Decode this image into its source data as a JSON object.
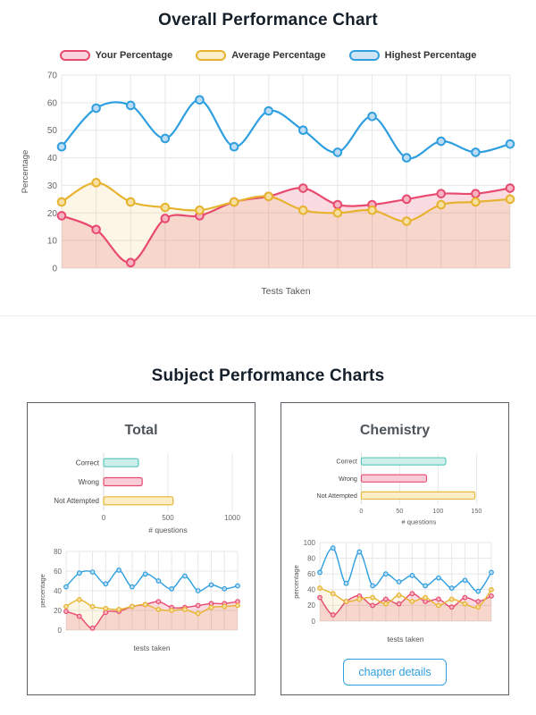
{
  "overall": {
    "title": "Overall Performance Chart",
    "xlabel": "Tests Taken",
    "ylabel": "Percentage"
  },
  "legend": [
    {
      "label": "Your Percentage",
      "stroke": "#e84a6f",
      "fill": "#fbd3dd"
    },
    {
      "label": "Average Percentage",
      "stroke": "#e7b32f",
      "fill": "#faeec9"
    },
    {
      "label": "Highest Percentage",
      "stroke": "#2f9fe0",
      "fill": "#cfe4f5"
    }
  ],
  "subjects": {
    "title": "Subject Performance Charts",
    "cards": [
      {
        "title": "Total"
      },
      {
        "title": "Chemistry",
        "button": "chapter details"
      }
    ]
  },
  "colors": {
    "your": "#e84a6f",
    "average": "#e7b32f",
    "highest": "#2f9fe0",
    "correct": "#53c6b9",
    "grid": "#e7e7e7"
  },
  "chart_data": [
    {
      "id": "overall-line",
      "type": "line",
      "title": "Overall Performance Chart",
      "xlabel": "Tests Taken",
      "ylabel": "Percentage",
      "ylim": [
        0,
        70
      ],
      "yticks": [
        0,
        10,
        20,
        30,
        40,
        50,
        60,
        70
      ],
      "grid": true,
      "legend_position": "top",
      "series": [
        {
          "name": "Your Percentage",
          "color": "#e84a6f",
          "point_fill": "#f6b3c2",
          "area": true,
          "area_opacity": 0.2,
          "values": [
            19,
            14,
            2,
            18,
            19,
            24,
            26,
            29,
            23,
            23,
            25,
            27,
            27,
            29
          ]
        },
        {
          "name": "Average Percentage",
          "color": "#e7b32f",
          "point_fill": "#f5dfa1",
          "area": true,
          "area_opacity": 0.12,
          "values": [
            24,
            31,
            24,
            22,
            21,
            24,
            26,
            21,
            20,
            21,
            17,
            23,
            24,
            25
          ]
        },
        {
          "name": "Highest Percentage",
          "color": "#2f9fe0",
          "point_fill": "#bcdcf3",
          "area": false,
          "values": [
            44,
            58,
            59,
            47,
            61,
            44,
            57,
            50,
            42,
            55,
            40,
            46,
            42,
            45
          ]
        }
      ]
    },
    {
      "id": "total-bar",
      "type": "bar",
      "orientation": "horizontal",
      "categories": [
        "Correct",
        "Wrong",
        "Not Attempted"
      ],
      "values": [
        270,
        300,
        540
      ],
      "bar_fills": [
        "#cdeeea",
        "#f9ccd8",
        "#fdeec5"
      ],
      "bar_strokes": [
        "#53c6b9",
        "#e84a6f",
        "#e7b32f"
      ],
      "xlabel": "# questions",
      "xlim": [
        0,
        1000
      ],
      "xticks": [
        0,
        500,
        1000
      ]
    },
    {
      "id": "total-line",
      "type": "line",
      "xlabel": "tests taken",
      "ylabel": "percentage",
      "ylim": [
        0,
        80
      ],
      "yticks": [
        0,
        20,
        40,
        60,
        80
      ],
      "series": [
        {
          "name": "Your Percentage",
          "color": "#e84a6f",
          "point_fill": "#f6b3c2",
          "area": true,
          "area_opacity": 0.2,
          "values": [
            19,
            14,
            2,
            18,
            19,
            24,
            26,
            29,
            23,
            23,
            25,
            27,
            27,
            29
          ]
        },
        {
          "name": "Average Percentage",
          "color": "#e7b32f",
          "point_fill": "#f5dfa1",
          "area": true,
          "area_opacity": 0.12,
          "values": [
            24,
            31,
            24,
            22,
            21,
            24,
            26,
            21,
            20,
            21,
            17,
            23,
            24,
            25
          ]
        },
        {
          "name": "Highest Percentage",
          "color": "#2f9fe0",
          "point_fill": "#bcdcf3",
          "area": false,
          "values": [
            44,
            58,
            59,
            47,
            61,
            44,
            57,
            50,
            42,
            55,
            40,
            46,
            42,
            45
          ]
        }
      ]
    },
    {
      "id": "chem-bar",
      "type": "bar",
      "orientation": "horizontal",
      "categories": [
        "Correct",
        "Wrong",
        "Not Attempted"
      ],
      "values": [
        110,
        85,
        148
      ],
      "bar_fills": [
        "#cdeeea",
        "#f9ccd8",
        "#fdeec5"
      ],
      "bar_strokes": [
        "#53c6b9",
        "#e84a6f",
        "#e7b32f"
      ],
      "xlabel": "# questions",
      "xlim": [
        0,
        150
      ],
      "xticks": [
        0,
        50,
        100,
        150
      ]
    },
    {
      "id": "chem-line",
      "type": "line",
      "xlabel": "tests taken",
      "ylabel": "percentage",
      "ylim": [
        0,
        100
      ],
      "yticks": [
        0,
        20,
        40,
        60,
        80,
        100
      ],
      "series": [
        {
          "name": "Your Percentage",
          "color": "#e84a6f",
          "point_fill": "#f6b3c2",
          "area": true,
          "area_opacity": 0.2,
          "values": [
            30,
            8,
            25,
            32,
            20,
            28,
            22,
            35,
            25,
            28,
            18,
            30,
            25,
            32
          ]
        },
        {
          "name": "Average Percentage",
          "color": "#e7b32f",
          "point_fill": "#f5dfa1",
          "area": true,
          "area_opacity": 0.12,
          "values": [
            42,
            35,
            25,
            28,
            30,
            22,
            33,
            25,
            30,
            20,
            28,
            22,
            18,
            40
          ]
        },
        {
          "name": "Highest Percentage",
          "color": "#2f9fe0",
          "point_fill": "#bcdcf3",
          "area": false,
          "values": [
            62,
            93,
            48,
            88,
            45,
            60,
            50,
            58,
            45,
            55,
            42,
            52,
            38,
            62
          ]
        }
      ]
    }
  ]
}
